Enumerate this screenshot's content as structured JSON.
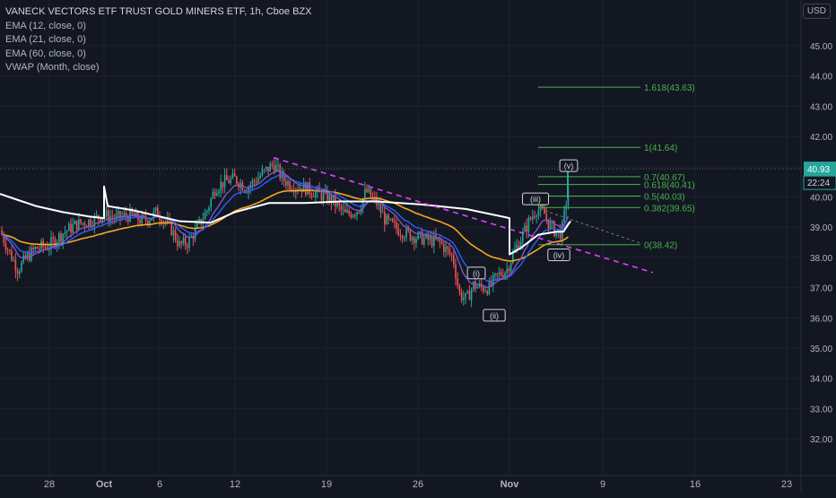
{
  "header": {
    "title": "VANECK VECTORS ETF TRUST GOLD MINERS ETF, 1h, Cboe BZX",
    "indicators": [
      "EMA (12, close, 0)",
      "EMA (21, close, 0)",
      "EMA (60, close, 0)",
      "VWAP (Month, close)"
    ],
    "currency": "USD"
  },
  "colors": {
    "background": "#131722",
    "up": "#26a69a",
    "down": "#ef5350",
    "ema12": "#7e57c2",
    "ema21": "#2962ff",
    "ema60": "#f5a623",
    "vwap": "#ffffff",
    "trendline": "#e040fb",
    "fib": "#4caf50",
    "price_tag": "#26a69a"
  },
  "price_axis": {
    "ticks": [
      "45.00",
      "44.00",
      "43.00",
      "42.00",
      "41.00",
      "40.00",
      "39.00",
      "38.00",
      "37.00",
      "36.00",
      "35.00",
      "34.00",
      "33.00",
      "32.00"
    ],
    "current_price": "40.93",
    "countdown": "22:24"
  },
  "time_axis": {
    "ticks": [
      "28",
      "Oct",
      "6",
      "12",
      "19",
      "26",
      "Nov",
      "9",
      "16",
      "23"
    ]
  },
  "fib_levels": [
    {
      "label": "1.618(43.63)",
      "price": 43.63
    },
    {
      "label": "1(41.64)",
      "price": 41.64
    },
    {
      "label": "0.7(40.67)",
      "price": 40.67
    },
    {
      "label": "0.618(40.41)",
      "price": 40.41
    },
    {
      "label": "0.5(40.03)",
      "price": 40.03
    },
    {
      "label": "0.382(39.65)",
      "price": 39.65
    },
    {
      "label": "0(38.42)",
      "price": 38.42
    }
  ],
  "wave_labels": [
    "(i)",
    "(ii)",
    "(iii)",
    "(iv)",
    "(v)"
  ],
  "chart_data": {
    "type": "candlestick",
    "symbol": "VANECK VECTORS ETF TRUST GOLD MINERS ETF",
    "interval": "1h",
    "exchange": "Cboe BZX",
    "ylim": [
      31.5,
      45.8
    ],
    "y_ticks": [
      32,
      33,
      34,
      35,
      36,
      37,
      38,
      39,
      40,
      41,
      42,
      43,
      44,
      45
    ],
    "x_ticks": [
      "28",
      "Oct",
      "6",
      "12",
      "19",
      "26",
      "Nov",
      "9",
      "16",
      "23"
    ],
    "price_path": [
      [
        0,
        38.9
      ],
      [
        10,
        38.2
      ],
      [
        20,
        37.6
      ],
      [
        30,
        38.0
      ],
      [
        40,
        38.3
      ],
      [
        55,
        38.4
      ],
      [
        70,
        38.8
      ],
      [
        85,
        39.1
      ],
      [
        100,
        39.2
      ],
      [
        115,
        39.4
      ],
      [
        130,
        39.3
      ],
      [
        145,
        39.4
      ],
      [
        160,
        39.2
      ],
      [
        175,
        39.5
      ],
      [
        190,
        39.0
      ],
      [
        200,
        38.4
      ],
      [
        210,
        38.5
      ],
      [
        220,
        39.0
      ],
      [
        230,
        39.5
      ],
      [
        240,
        40.3
      ],
      [
        250,
        40.5
      ],
      [
        262,
        40.6
      ],
      [
        275,
        40.3
      ],
      [
        290,
        40.7
      ],
      [
        305,
        41.1
      ],
      [
        315,
        40.6
      ],
      [
        325,
        40.4
      ],
      [
        340,
        40.3
      ],
      [
        355,
        40.1
      ],
      [
        370,
        39.9
      ],
      [
        385,
        39.4
      ],
      [
        400,
        39.6
      ],
      [
        408,
        40.2
      ],
      [
        420,
        39.8
      ],
      [
        430,
        39.2
      ],
      [
        445,
        38.9
      ],
      [
        460,
        38.7
      ],
      [
        475,
        38.6
      ],
      [
        490,
        38.5
      ],
      [
        505,
        38.0
      ],
      [
        512,
        36.8
      ],
      [
        520,
        36.6
      ],
      [
        528,
        37.1
      ],
      [
        535,
        37.0
      ],
      [
        545,
        37.0
      ],
      [
        555,
        37.4
      ],
      [
        565,
        37.6
      ],
      [
        572,
        38.1
      ],
      [
        582,
        38.7
      ],
      [
        590,
        39.2
      ],
      [
        598,
        39.6
      ],
      [
        606,
        39.5
      ],
      [
        612,
        39.1
      ],
      [
        618,
        38.9
      ],
      [
        626,
        38.8
      ],
      [
        632,
        40.0
      ],
      [
        636,
        40.93
      ]
    ],
    "trendline": {
      "from": [
        305,
        41.3
      ],
      "to": [
        728,
        37.5
      ]
    },
    "fib_levels": [
      {
        "ratio": "1.618",
        "price": 43.63
      },
      {
        "ratio": "1",
        "price": 41.64
      },
      {
        "ratio": "0.7",
        "price": 40.67
      },
      {
        "ratio": "0.618",
        "price": 40.41
      },
      {
        "ratio": "0.5",
        "price": 40.03
      },
      {
        "ratio": "0.382",
        "price": 39.65
      },
      {
        "ratio": "0",
        "price": 38.42
      }
    ],
    "elliott_waves": [
      {
        "label": "(i)",
        "price": 37.5
      },
      {
        "label": "(ii)",
        "price": 36.1
      },
      {
        "label": "(iii)",
        "price": 39.95
      },
      {
        "label": "(iv)",
        "price": 38.1
      },
      {
        "label": "(v)",
        "price": 41.05
      }
    ],
    "last_price": 40.93,
    "countdown": "22:24"
  }
}
